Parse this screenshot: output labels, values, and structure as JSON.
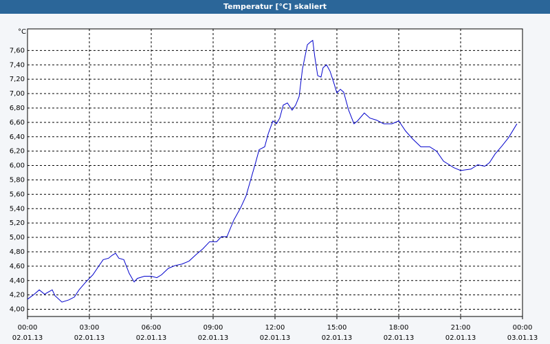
{
  "chart_data": {
    "type": "line",
    "title": "Temperatur [°C] skaliert",
    "y_label": "°C",
    "x": [
      0,
      0.33,
      0.57,
      0.83,
      1.07,
      1.2,
      1.33,
      1.67,
      2,
      2.27,
      2.5,
      2.83,
      3.17,
      3.5,
      3.67,
      3.93,
      4.1,
      4.27,
      4.43,
      4.67,
      4.93,
      5.17,
      5.33,
      5.67,
      6,
      6.27,
      6.5,
      6.83,
      7.17,
      7.5,
      7.83,
      8.17,
      8.5,
      8.83,
      9.17,
      9.4,
      9.67,
      10,
      10.33,
      10.6,
      10.83,
      11.07,
      11.23,
      11.5,
      11.67,
      11.9,
      12.07,
      12.23,
      12.4,
      12.6,
      12.83,
      13,
      13.17,
      13.33,
      13.57,
      13.73,
      13.83,
      13.93,
      14.07,
      14.23,
      14.33,
      14.5,
      14.67,
      14.83,
      15,
      15.17,
      15.33,
      15.57,
      15.83,
      16,
      16.33,
      16.6,
      16.93,
      17.27,
      17.67,
      18,
      18.33,
      18.67,
      19.07,
      19.5,
      19.83,
      20.17,
      20.67,
      21,
      21.5,
      21.83,
      22.17,
      22.4,
      22.67,
      23,
      23.33,
      23.73
    ],
    "series": [
      {
        "name": "Temperatur",
        "color": "#0000cc",
        "values": [
          4.14,
          4.21,
          4.27,
          4.21,
          4.25,
          4.27,
          4.19,
          4.1,
          4.13,
          4.17,
          4.27,
          4.38,
          4.48,
          4.62,
          4.69,
          4.71,
          4.75,
          4.78,
          4.71,
          4.69,
          4.5,
          4.38,
          4.43,
          4.46,
          4.46,
          4.44,
          4.48,
          4.57,
          4.61,
          4.63,
          4.67,
          4.76,
          4.84,
          4.94,
          4.94,
          5.01,
          5.01,
          5.24,
          5.41,
          5.58,
          5.81,
          6.05,
          6.22,
          6.26,
          6.44,
          6.62,
          6.58,
          6.66,
          6.84,
          6.87,
          6.77,
          6.84,
          6.96,
          7.34,
          7.68,
          7.72,
          7.74,
          7.51,
          7.25,
          7.23,
          7.36,
          7.4,
          7.31,
          7.17,
          7.01,
          7.06,
          7.02,
          6.77,
          6.58,
          6.62,
          6.73,
          6.66,
          6.63,
          6.58,
          6.58,
          6.62,
          6.48,
          6.37,
          6.26,
          6.26,
          6.2,
          6.06,
          5.97,
          5.93,
          5.95,
          6.01,
          5.99,
          6.04,
          6.16,
          6.27,
          6.39,
          6.58
        ]
      }
    ],
    "xlim": [
      0,
      24
    ],
    "xticks": [
      {
        "value": 0,
        "label": "00:00"
      },
      {
        "value": 3,
        "label": "03:00"
      },
      {
        "value": 6,
        "label": "06:00"
      },
      {
        "value": 9,
        "label": "09:00"
      },
      {
        "value": 12,
        "label": "12:00"
      },
      {
        "value": 15,
        "label": "15:00"
      },
      {
        "value": 18,
        "label": "18:00"
      },
      {
        "value": 21,
        "label": "21:00"
      },
      {
        "value": 24,
        "label": "00:00"
      }
    ],
    "xtick_dates": [
      "02.01.13",
      "02.01.13",
      "02.01.13",
      "02.01.13",
      "02.01.13",
      "02.01.13",
      "02.01.13",
      "02.01.13",
      "03.01.13"
    ],
    "ylim": [
      3.9,
      7.9
    ],
    "yticks": [
      {
        "value": 4.0,
        "label": "4,00"
      },
      {
        "value": 4.2,
        "label": "4,20"
      },
      {
        "value": 4.4,
        "label": "4,40"
      },
      {
        "value": 4.6,
        "label": "4,60"
      },
      {
        "value": 4.8,
        "label": "4,80"
      },
      {
        "value": 5.0,
        "label": "5,00"
      },
      {
        "value": 5.2,
        "label": "5,20"
      },
      {
        "value": 5.4,
        "label": "5,40"
      },
      {
        "value": 5.6,
        "label": "5,60"
      },
      {
        "value": 5.8,
        "label": "5,80"
      },
      {
        "value": 6.0,
        "label": "6,00"
      },
      {
        "value": 6.2,
        "label": "6,20"
      },
      {
        "value": 6.4,
        "label": "6,40"
      },
      {
        "value": 6.6,
        "label": "6,60"
      },
      {
        "value": 6.8,
        "label": "6,80"
      },
      {
        "value": 7.0,
        "label": "7,00"
      },
      {
        "value": 7.2,
        "label": "7,20"
      },
      {
        "value": 7.4,
        "label": "7,40"
      },
      {
        "value": 7.6,
        "label": "7,60"
      }
    ],
    "grid": true
  }
}
